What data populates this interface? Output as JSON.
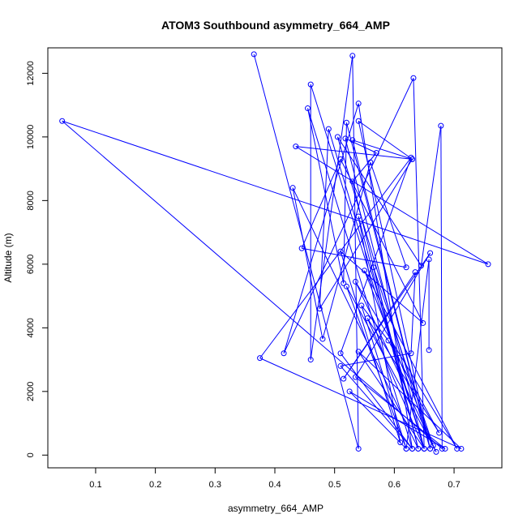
{
  "chart_data": {
    "type": "scatter",
    "title": "ATOM3 Southbound asymmetry_664_AMP",
    "xlabel": "asymmetry_664_AMP",
    "ylabel": "Altitude (m)",
    "xlim": [
      0.02,
      0.78
    ],
    "ylim": [
      -400,
      12800
    ],
    "xticks": [
      0.1,
      0.2,
      0.3,
      0.4,
      0.5,
      0.6,
      0.7
    ],
    "xtick_labels": [
      "0.1",
      "0.2",
      "0.3",
      "0.4",
      "0.5",
      "0.6",
      "0.7"
    ],
    "yticks": [
      0,
      2000,
      4000,
      6000,
      8000,
      10000,
      12000
    ],
    "ytick_labels": [
      "0",
      "2000",
      "4000",
      "6000",
      "8000",
      "10000",
      "12000"
    ],
    "grid": false,
    "series": [
      {
        "color": "#0000ff",
        "marker": "open-circle",
        "line": true,
        "points": [
          [
            0.365,
            12600
          ],
          [
            0.54,
            200
          ],
          [
            0.53,
            12550
          ],
          [
            0.46,
            3000
          ],
          [
            0.46,
            11650
          ],
          [
            0.65,
            200
          ],
          [
            0.632,
            11850
          ],
          [
            0.415,
            3200
          ],
          [
            0.54,
            11050
          ],
          [
            0.63,
            200
          ],
          [
            0.455,
            10900
          ],
          [
            0.515,
            5400
          ],
          [
            0.52,
            10450
          ],
          [
            0.66,
            200
          ],
          [
            0.54,
            10500
          ],
          [
            0.63,
            9300
          ],
          [
            0.435,
            9700
          ],
          [
            0.757,
            6000
          ],
          [
            0.044,
            10500
          ],
          [
            0.68,
            200
          ],
          [
            0.678,
            10350
          ],
          [
            0.645,
            5950
          ],
          [
            0.505,
            10000
          ],
          [
            0.66,
            200
          ],
          [
            0.53,
            9900
          ],
          [
            0.63,
            9300
          ],
          [
            0.475,
            4600
          ],
          [
            0.49,
            10250
          ],
          [
            0.65,
            200
          ],
          [
            0.518,
            9950
          ],
          [
            0.57,
            9500
          ],
          [
            0.53,
            8600
          ],
          [
            0.64,
            200
          ],
          [
            0.43,
            8400
          ],
          [
            0.48,
            3650
          ],
          [
            0.56,
            9200
          ],
          [
            0.62,
            5900
          ],
          [
            0.445,
            6500
          ],
          [
            0.51,
            9300
          ],
          [
            0.648,
            4150
          ],
          [
            0.51,
            6400
          ],
          [
            0.61,
            400
          ],
          [
            0.54,
            7500
          ],
          [
            0.64,
            200
          ],
          [
            0.565,
            5900
          ],
          [
            0.665,
            300
          ],
          [
            0.55,
            5800
          ],
          [
            0.705,
            200
          ],
          [
            0.535,
            5450
          ],
          [
            0.67,
            100
          ],
          [
            0.52,
            5300
          ],
          [
            0.62,
            200
          ],
          [
            0.545,
            4700
          ],
          [
            0.59,
            3600
          ],
          [
            0.675,
            700
          ],
          [
            0.555,
            4300
          ],
          [
            0.65,
            200
          ],
          [
            0.54,
            3250
          ],
          [
            0.712,
            200
          ],
          [
            0.375,
            3050
          ],
          [
            0.628,
            9350
          ],
          [
            0.51,
            3200
          ],
          [
            0.63,
            200
          ],
          [
            0.51,
            2800
          ],
          [
            0.628,
            3200
          ],
          [
            0.635,
            5750
          ],
          [
            0.515,
            2400
          ],
          [
            0.66,
            6350
          ],
          [
            0.535,
            2450
          ],
          [
            0.685,
            200
          ],
          [
            0.525,
            2000
          ],
          [
            0.62,
            200
          ],
          [
            0.658,
            6150
          ],
          [
            0.658,
            3300
          ]
        ]
      }
    ]
  }
}
